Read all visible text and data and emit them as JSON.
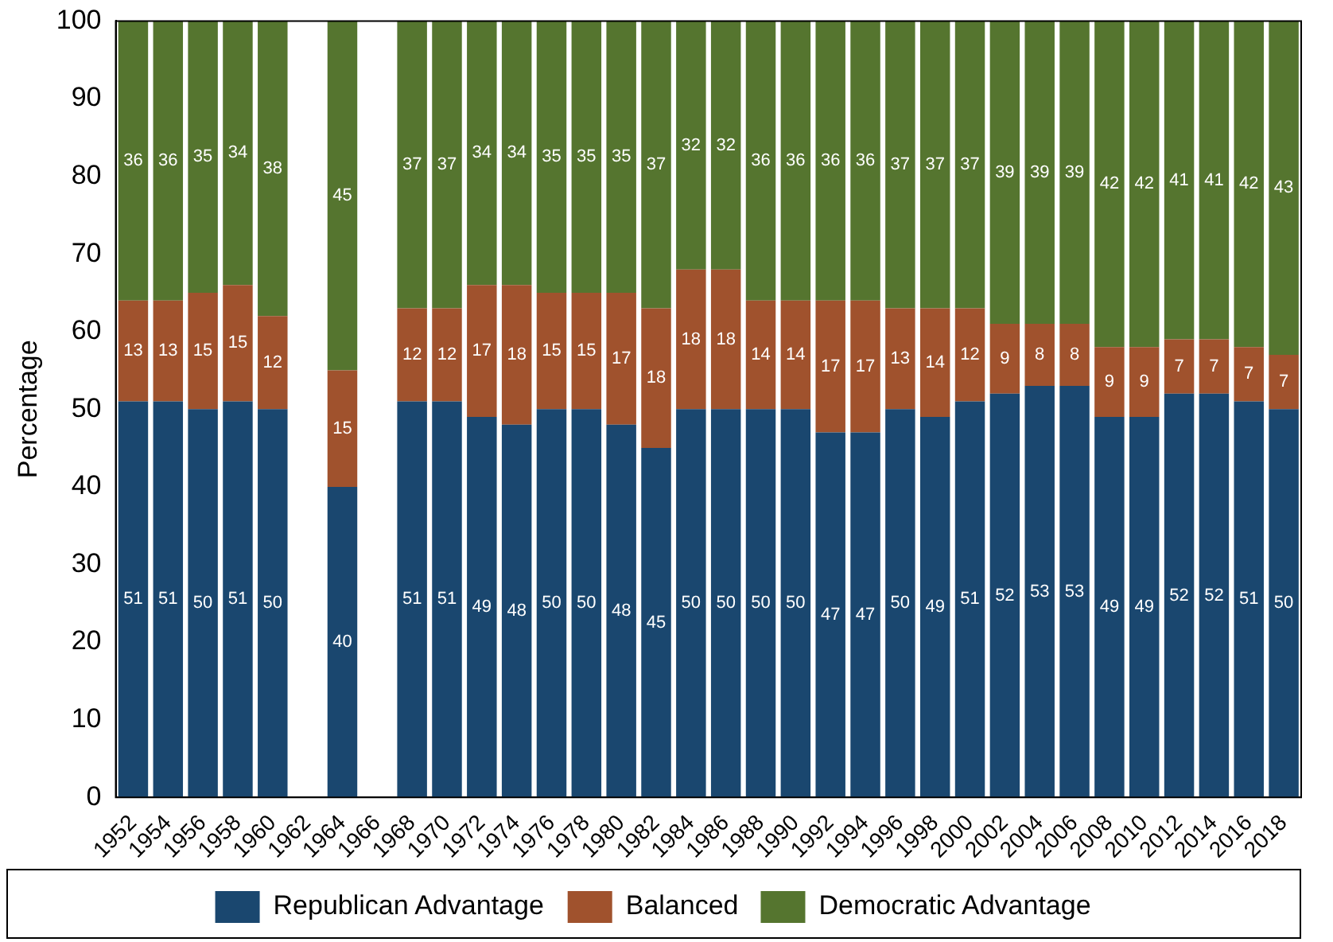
{
  "chart_data": {
    "type": "bar",
    "stacked": true,
    "ylabel": "Percentage",
    "categories": [
      "1952",
      "1954",
      "1956",
      "1958",
      "1960",
      "1962",
      "1964",
      "1966",
      "1968",
      "1970",
      "1972",
      "1974",
      "1976",
      "1978",
      "1980",
      "1982",
      "1984",
      "1986",
      "1988",
      "1990",
      "1992",
      "1994",
      "1996",
      "1998",
      "2000",
      "2002",
      "2004",
      "2006",
      "2008",
      "2010",
      "2012",
      "2014",
      "2016",
      "2018"
    ],
    "series": [
      {
        "name": "Republican Advantage",
        "color": "#1a476f",
        "values": [
          51,
          51,
          50,
          51,
          50,
          null,
          40,
          null,
          51,
          51,
          49,
          48,
          50,
          50,
          48,
          45,
          50,
          50,
          50,
          50,
          47,
          47,
          50,
          49,
          51,
          52,
          53,
          53,
          49,
          49,
          52,
          52,
          51,
          50
        ]
      },
      {
        "name": "Balanced",
        "color": "#a0522d",
        "values": [
          13,
          13,
          15,
          15,
          12,
          null,
          15,
          null,
          12,
          12,
          17,
          18,
          15,
          15,
          17,
          18,
          18,
          18,
          14,
          14,
          17,
          17,
          13,
          14,
          12,
          9,
          8,
          8,
          9,
          9,
          7,
          7,
          7,
          7
        ]
      },
      {
        "name": "Democratic Advantage",
        "color": "#55752f",
        "values": [
          36,
          36,
          35,
          34,
          38,
          null,
          45,
          null,
          37,
          37,
          34,
          34,
          35,
          35,
          35,
          37,
          32,
          32,
          36,
          36,
          36,
          36,
          37,
          37,
          37,
          39,
          39,
          39,
          42,
          42,
          41,
          41,
          42,
          43
        ]
      }
    ],
    "ylim": [
      0,
      100
    ],
    "yticks": [
      0,
      10,
      20,
      30,
      40,
      50,
      60,
      70,
      80,
      90,
      100
    ],
    "grid": false,
    "legend": "bottom",
    "data_labels": true
  }
}
